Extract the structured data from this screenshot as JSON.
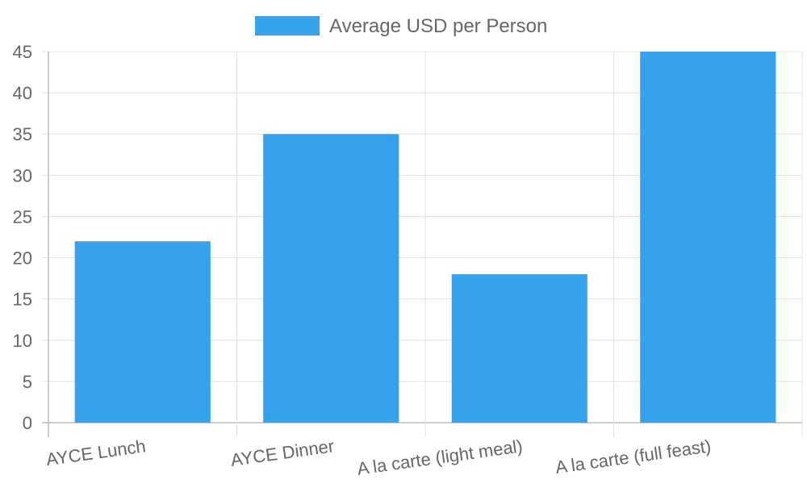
{
  "chart_data": {
    "type": "bar",
    "categories": [
      "AYCE Lunch",
      "AYCE Dinner",
      "A la carte (light meal)",
      "A la carte (full feast)"
    ],
    "series": [
      {
        "name": "Average USD per Person",
        "values": [
          22,
          35,
          18,
          45
        ],
        "color": "#36a2eb"
      }
    ],
    "y_ticks": [
      "0",
      "5",
      "10",
      "15",
      "20",
      "25",
      "30",
      "35",
      "40",
      "45"
    ],
    "ylim": [
      0,
      45
    ],
    "grid": true,
    "legend_position": "top-center"
  }
}
